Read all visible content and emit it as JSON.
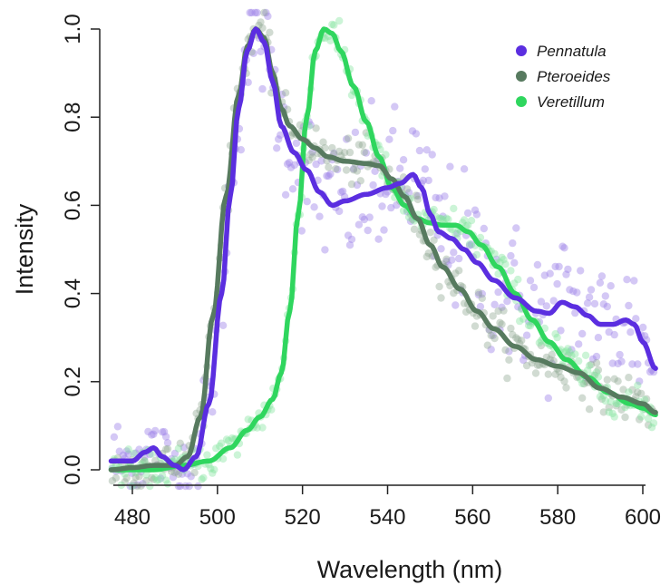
{
  "chart_data": {
    "type": "scatter",
    "title": "",
    "xlabel": "Wavelength (nm)",
    "ylabel": "Intensity",
    "xlim": [
      475,
      603
    ],
    "ylim": [
      -0.02,
      1.02
    ],
    "xticks": [
      480,
      500,
      520,
      540,
      560,
      580,
      600
    ],
    "yticks": [
      0.0,
      0.2,
      0.4,
      0.6,
      0.8,
      1.0
    ],
    "xtick_labels": [
      "480",
      "500",
      "520",
      "540",
      "560",
      "580",
      "600"
    ],
    "ytick_labels": [
      "0.0",
      "0.2",
      "0.4",
      "0.6",
      "0.8",
      "1.0"
    ],
    "legend_position": "top-right",
    "grid": false,
    "series": [
      {
        "name": "Pennatula",
        "color": "#5b2ee0",
        "point_color": "#9f86e8",
        "noise": 0.07,
        "smooth": [
          [
            475,
            0.02
          ],
          [
            480,
            0.02
          ],
          [
            483,
            0.04
          ],
          [
            485,
            0.05
          ],
          [
            487,
            0.03
          ],
          [
            490,
            0.01
          ],
          [
            492,
            0.0
          ],
          [
            495,
            0.03
          ],
          [
            498,
            0.15
          ],
          [
            501,
            0.4
          ],
          [
            503,
            0.62
          ],
          [
            505,
            0.82
          ],
          [
            507,
            0.95
          ],
          [
            509,
            1.0
          ],
          [
            511,
            0.97
          ],
          [
            513,
            0.88
          ],
          [
            515,
            0.78
          ],
          [
            518,
            0.72
          ],
          [
            521,
            0.68
          ],
          [
            524,
            0.63
          ],
          [
            527,
            0.6
          ],
          [
            530,
            0.61
          ],
          [
            535,
            0.625
          ],
          [
            540,
            0.64
          ],
          [
            543,
            0.65
          ],
          [
            546,
            0.67
          ],
          [
            548,
            0.64
          ],
          [
            550,
            0.58
          ],
          [
            552,
            0.54
          ],
          [
            555,
            0.525
          ],
          [
            558,
            0.5
          ],
          [
            561,
            0.47
          ],
          [
            565,
            0.43
          ],
          [
            570,
            0.39
          ],
          [
            575,
            0.36
          ],
          [
            578,
            0.355
          ],
          [
            581,
            0.38
          ],
          [
            584,
            0.37
          ],
          [
            587,
            0.35
          ],
          [
            590,
            0.33
          ],
          [
            593,
            0.33
          ],
          [
            596,
            0.34
          ],
          [
            598,
            0.33
          ],
          [
            600,
            0.29
          ],
          [
            603,
            0.23
          ]
        ]
      },
      {
        "name": "Pteroeides",
        "color": "#577a5f",
        "point_color": "#8ba58f",
        "noise": 0.025,
        "smooth": [
          [
            475,
            0.0
          ],
          [
            480,
            0.005
          ],
          [
            485,
            0.01
          ],
          [
            490,
            0.01
          ],
          [
            493,
            0.03
          ],
          [
            496,
            0.12
          ],
          [
            499,
            0.35
          ],
          [
            502,
            0.62
          ],
          [
            505,
            0.85
          ],
          [
            507,
            0.96
          ],
          [
            509,
            1.0
          ],
          [
            511,
            0.98
          ],
          [
            513,
            0.9
          ],
          [
            515,
            0.82
          ],
          [
            517,
            0.78
          ],
          [
            520,
            0.75
          ],
          [
            523,
            0.73
          ],
          [
            526,
            0.71
          ],
          [
            530,
            0.7
          ],
          [
            535,
            0.695
          ],
          [
            538,
            0.69
          ],
          [
            541,
            0.66
          ],
          [
            544,
            0.62
          ],
          [
            547,
            0.57
          ],
          [
            550,
            0.51
          ],
          [
            553,
            0.46
          ],
          [
            557,
            0.41
          ],
          [
            561,
            0.36
          ],
          [
            565,
            0.32
          ],
          [
            570,
            0.28
          ],
          [
            575,
            0.25
          ],
          [
            580,
            0.235
          ],
          [
            585,
            0.22
          ],
          [
            590,
            0.185
          ],
          [
            595,
            0.165
          ],
          [
            600,
            0.15
          ],
          [
            603,
            0.13
          ]
        ]
      },
      {
        "name": "Veretillum",
        "color": "#2fd65e",
        "point_color": "#7fe39c",
        "noise": 0.02,
        "smooth": [
          [
            475,
            0.0
          ],
          [
            485,
            0.0
          ],
          [
            492,
            0.01
          ],
          [
            498,
            0.02
          ],
          [
            503,
            0.05
          ],
          [
            507,
            0.09
          ],
          [
            510,
            0.12
          ],
          [
            513,
            0.16
          ],
          [
            515,
            0.22
          ],
          [
            517,
            0.36
          ],
          [
            519,
            0.58
          ],
          [
            521,
            0.8
          ],
          [
            523,
            0.95
          ],
          [
            525,
            1.0
          ],
          [
            527,
            0.99
          ],
          [
            529,
            0.95
          ],
          [
            532,
            0.87
          ],
          [
            535,
            0.79
          ],
          [
            538,
            0.71
          ],
          [
            541,
            0.64
          ],
          [
            544,
            0.6
          ],
          [
            547,
            0.57
          ],
          [
            550,
            0.56
          ],
          [
            553,
            0.555
          ],
          [
            556,
            0.555
          ],
          [
            559,
            0.54
          ],
          [
            562,
            0.51
          ],
          [
            566,
            0.46
          ],
          [
            570,
            0.4
          ],
          [
            574,
            0.34
          ],
          [
            578,
            0.29
          ],
          [
            582,
            0.25
          ],
          [
            587,
            0.21
          ],
          [
            592,
            0.175
          ],
          [
            597,
            0.15
          ],
          [
            600,
            0.14
          ],
          [
            603,
            0.125
          ]
        ]
      }
    ]
  }
}
